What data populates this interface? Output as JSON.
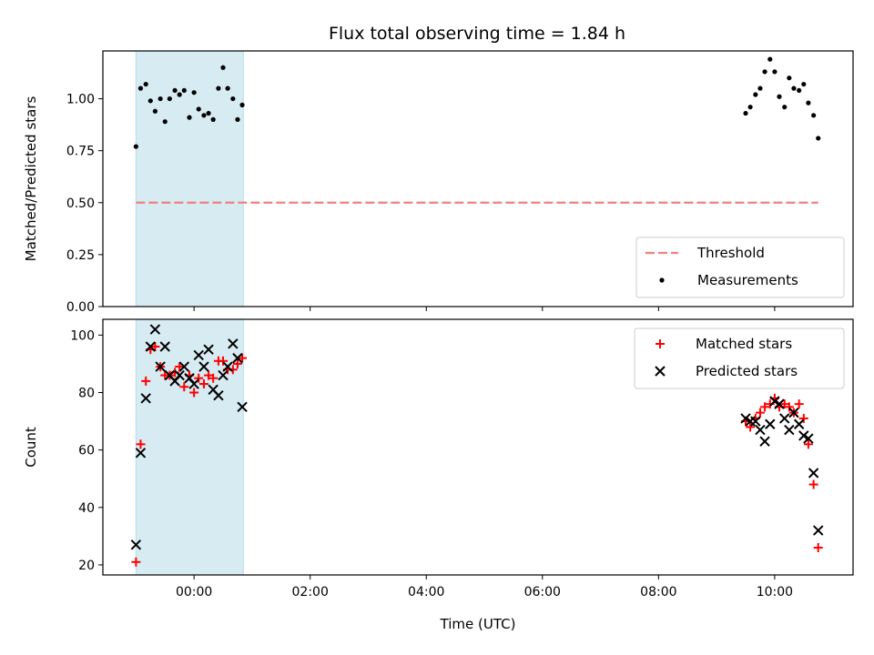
{
  "figure": {
    "title": "Flux total observing time = 1.84 h",
    "background": "#ffffff"
  },
  "chart_data": [
    {
      "type": "scatter",
      "ylabel": "Matched/Predicted stars",
      "xlabel": "",
      "x_unit": "hours (UTC)",
      "xlim": [
        -1.57,
        11.35
      ],
      "ylim": [
        0,
        1.23
      ],
      "x_ticks": [
        0,
        2,
        4,
        6,
        8,
        10
      ],
      "y_ticks": [
        0.0,
        0.25,
        0.5,
        0.75,
        1.0
      ],
      "y_tick_labels": [
        "0.00",
        "0.25",
        "0.50",
        "0.75",
        "1.00"
      ],
      "shaded_region": {
        "x": [
          -1.0,
          0.85
        ],
        "color": "#add8e6",
        "alpha": 0.5
      },
      "legend": {
        "placement": "lower-right",
        "entries": [
          "Threshold",
          "Measurements"
        ]
      },
      "series": [
        {
          "name": "Threshold",
          "kind": "dashed-line",
          "color": "#f08080",
          "x": [
            -1.0,
            10.75
          ],
          "y": [
            0.5,
            0.5
          ]
        },
        {
          "name": "Measurements",
          "kind": "dot",
          "color": "#000000",
          "x": [
            -1.0,
            -0.92,
            -0.83,
            -0.75,
            -0.67,
            -0.58,
            -0.5,
            -0.42,
            -0.33,
            -0.25,
            -0.17,
            -0.08,
            0.0,
            0.08,
            0.17,
            0.25,
            0.33,
            0.42,
            0.5,
            0.58,
            0.67,
            0.75,
            0.83,
            9.5,
            9.58,
            9.67,
            9.75,
            9.83,
            9.92,
            10.0,
            10.08,
            10.17,
            10.25,
            10.33,
            10.42,
            10.5,
            10.58,
            10.67,
            10.75
          ],
          "y": [
            0.77,
            1.05,
            1.07,
            0.99,
            0.94,
            1.0,
            0.89,
            1.0,
            1.04,
            1.02,
            1.04,
            0.91,
            1.03,
            0.95,
            0.92,
            0.93,
            0.9,
            1.05,
            1.15,
            1.05,
            1.0,
            0.9,
            0.97,
            0.93,
            0.96,
            1.02,
            1.05,
            1.13,
            1.19,
            1.13,
            1.01,
            0.96,
            1.1,
            1.05,
            1.04,
            1.07,
            0.98,
            0.92,
            0.81
          ]
        }
      ]
    },
    {
      "type": "scatter",
      "ylabel": "Count",
      "xlabel": "Time (UTC)",
      "x_unit": "hours (UTC)",
      "xlim": [
        -1.57,
        11.35
      ],
      "ylim": [
        16.5,
        105.5
      ],
      "x_ticks": [
        0,
        2,
        4,
        6,
        8,
        10
      ],
      "x_tick_labels": [
        "00:00",
        "02:00",
        "04:00",
        "06:00",
        "08:00",
        "10:00"
      ],
      "y_ticks": [
        20,
        40,
        60,
        80,
        100
      ],
      "shaded_region": {
        "x": [
          -1.0,
          0.85
        ],
        "color": "#add8e6",
        "alpha": 0.5
      },
      "legend": {
        "placement": "upper-right",
        "entries": [
          "Matched stars",
          "Predicted stars"
        ]
      },
      "series": [
        {
          "name": "Matched stars",
          "kind": "plus",
          "color": "#ff0000",
          "x": [
            -1.0,
            -0.92,
            -0.83,
            -0.75,
            -0.67,
            -0.58,
            -0.5,
            -0.42,
            -0.33,
            -0.25,
            -0.17,
            -0.08,
            0.0,
            0.08,
            0.17,
            0.25,
            0.33,
            0.42,
            0.5,
            0.58,
            0.67,
            0.75,
            0.83,
            9.5,
            9.58,
            9.67,
            9.75,
            9.83,
            9.92,
            10.0,
            10.08,
            10.17,
            10.25,
            10.33,
            10.42,
            10.5,
            10.58,
            10.67,
            10.75
          ],
          "y": [
            21,
            62,
            84,
            95,
            96,
            89,
            86,
            86,
            87,
            89,
            82,
            86,
            80,
            85,
            83,
            86,
            85,
            91,
            91,
            88,
            88,
            90,
            92,
            70,
            68,
            71,
            73,
            75,
            76,
            78,
            75,
            76,
            75,
            73,
            76,
            71,
            62,
            48,
            26
          ]
        },
        {
          "name": "Predicted stars",
          "kind": "x",
          "color": "#000000",
          "x": [
            -1.0,
            -0.92,
            -0.83,
            -0.75,
            -0.67,
            -0.58,
            -0.5,
            -0.42,
            -0.33,
            -0.25,
            -0.17,
            -0.08,
            0.0,
            0.08,
            0.17,
            0.25,
            0.33,
            0.42,
            0.5,
            0.58,
            0.67,
            0.75,
            0.83,
            9.5,
            9.58,
            9.67,
            9.75,
            9.83,
            9.92,
            10.0,
            10.08,
            10.17,
            10.25,
            10.33,
            10.42,
            10.5,
            10.58,
            10.67,
            10.75
          ],
          "y": [
            27,
            59,
            78,
            96,
            102,
            89,
            96,
            86,
            84,
            86,
            89,
            85,
            83,
            93,
            89,
            95,
            81,
            79,
            86,
            89,
            97,
            92,
            75,
            71,
            70,
            70,
            67,
            63,
            69,
            77,
            76,
            71,
            67,
            73,
            69,
            65,
            64,
            52,
            32
          ]
        }
      ]
    }
  ]
}
